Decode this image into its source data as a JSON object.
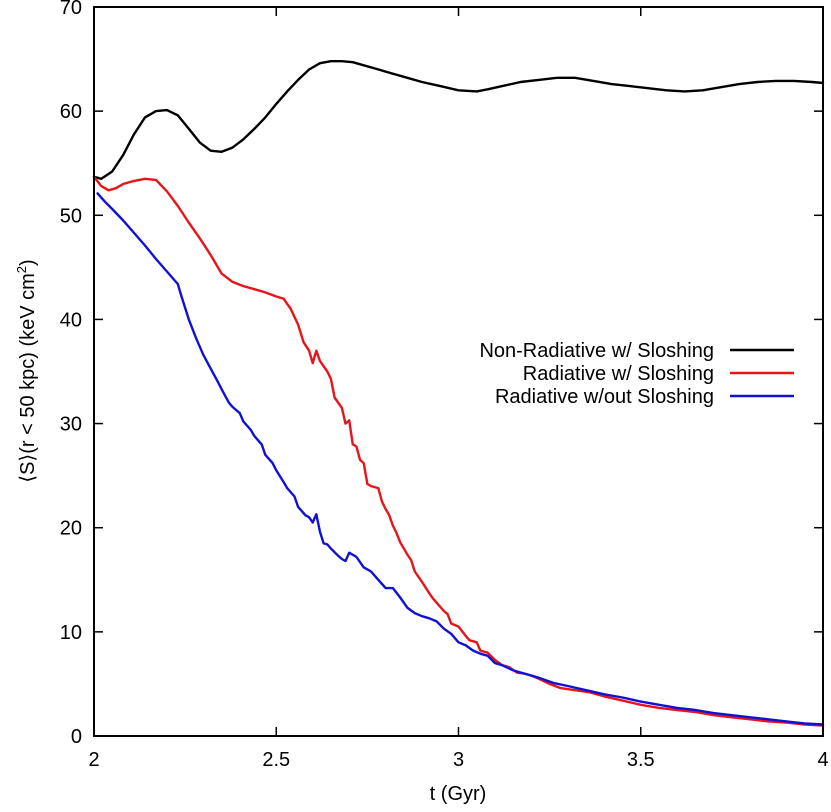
{
  "chart_data": {
    "type": "line",
    "xlabel": "t (Gyr)",
    "ylabel_main": "⟨S⟩(r < 50 kpc) (keV cm",
    "ylabel_sup": "2",
    "ylabel_close": ")",
    "xlim": [
      2,
      4
    ],
    "ylim": [
      0,
      70
    ],
    "xticks": [
      2,
      2.5,
      3,
      3.5,
      4
    ],
    "xtick_labels": [
      "2",
      "2.5",
      "3",
      "3.5",
      "4"
    ],
    "yticks": [
      0,
      10,
      20,
      30,
      40,
      50,
      60,
      70
    ],
    "ytick_labels": [
      "0",
      "10",
      "20",
      "30",
      "40",
      "50",
      "60",
      "70"
    ],
    "grid": false,
    "legend_position": "right-middle",
    "series": [
      {
        "name": "Non-Radiative w/ Sloshing",
        "color": "#000000",
        "x": [
          2.0,
          2.02,
          2.05,
          2.08,
          2.11,
          2.14,
          2.17,
          2.2,
          2.23,
          2.26,
          2.29,
          2.32,
          2.35,
          2.38,
          2.41,
          2.44,
          2.47,
          2.5,
          2.53,
          2.56,
          2.59,
          2.62,
          2.65,
          2.68,
          2.71,
          2.74,
          2.77,
          2.8,
          2.85,
          2.9,
          2.95,
          3.0,
          3.05,
          3.08,
          3.12,
          3.17,
          3.22,
          3.27,
          3.32,
          3.37,
          3.42,
          3.47,
          3.52,
          3.57,
          3.62,
          3.67,
          3.72,
          3.77,
          3.82,
          3.87,
          3.92,
          3.97,
          4.0
        ],
        "y": [
          53.7,
          53.5,
          54.2,
          55.8,
          57.8,
          59.4,
          60.0,
          60.1,
          59.6,
          58.3,
          57.0,
          56.2,
          56.1,
          56.5,
          57.3,
          58.3,
          59.4,
          60.7,
          61.9,
          63.0,
          64.0,
          64.6,
          64.8,
          64.8,
          64.7,
          64.4,
          64.1,
          63.8,
          63.3,
          62.8,
          62.4,
          62.0,
          61.9,
          62.1,
          62.4,
          62.8,
          63.0,
          63.2,
          63.2,
          62.9,
          62.6,
          62.4,
          62.2,
          62.0,
          61.9,
          62.0,
          62.3,
          62.6,
          62.8,
          62.9,
          62.9,
          62.8,
          62.7
        ]
      },
      {
        "name": "Radiative w/ Sloshing",
        "color": "#e8131b",
        "x": [
          2.0,
          2.02,
          2.04,
          2.06,
          2.08,
          2.11,
          2.14,
          2.17,
          2.2,
          2.23,
          2.26,
          2.29,
          2.32,
          2.35,
          2.38,
          2.41,
          2.44,
          2.47,
          2.5,
          2.52,
          2.54,
          2.56,
          2.575,
          2.59,
          2.6,
          2.61,
          2.62,
          2.64,
          2.65,
          2.66,
          2.68,
          2.69,
          2.7,
          2.71,
          2.72,
          2.73,
          2.74,
          2.75,
          2.76,
          2.78,
          2.79,
          2.8,
          2.81,
          2.82,
          2.83,
          2.84,
          2.86,
          2.87,
          2.88,
          2.9,
          2.92,
          2.93,
          2.94,
          2.96,
          2.97,
          2.98,
          3.0,
          3.02,
          3.03,
          3.05,
          3.06,
          3.08,
          3.1,
          3.12,
          3.14,
          3.16,
          3.18,
          3.2,
          3.22,
          3.25,
          3.28,
          3.32,
          3.36,
          3.4,
          3.45,
          3.5,
          3.55,
          3.6,
          3.65,
          3.7,
          3.75,
          3.8,
          3.85,
          3.9,
          3.95,
          4.0
        ],
        "y": [
          53.7,
          52.8,
          52.4,
          52.6,
          53.0,
          53.3,
          53.5,
          53.4,
          52.3,
          50.9,
          49.3,
          47.8,
          46.2,
          44.4,
          43.6,
          43.2,
          42.9,
          42.6,
          42.2,
          42.0,
          41.0,
          39.5,
          37.8,
          37.0,
          35.8,
          37.0,
          36.0,
          35.0,
          34.3,
          32.5,
          31.5,
          30.0,
          30.3,
          28.0,
          27.8,
          26.5,
          26.2,
          24.2,
          24.0,
          23.8,
          22.5,
          21.8,
          21.2,
          20.2,
          19.5,
          18.6,
          17.4,
          16.9,
          15.8,
          14.8,
          13.7,
          13.2,
          12.8,
          12.0,
          11.7,
          10.8,
          10.5,
          9.6,
          9.2,
          9.0,
          8.2,
          8.0,
          7.3,
          6.8,
          6.6,
          6.1,
          6.0,
          5.8,
          5.5,
          5.0,
          4.6,
          4.4,
          4.2,
          3.8,
          3.4,
          3.0,
          2.7,
          2.5,
          2.3,
          2.0,
          1.8,
          1.6,
          1.4,
          1.3,
          1.1,
          1.0
        ]
      },
      {
        "name": "Radiative w/out Sloshing",
        "color": "#1111d6",
        "x": [
          2.01,
          2.03,
          2.05,
          2.08,
          2.11,
          2.14,
          2.17,
          2.2,
          2.23,
          2.24,
          2.26,
          2.28,
          2.3,
          2.32,
          2.34,
          2.35,
          2.37,
          2.38,
          2.4,
          2.41,
          2.43,
          2.44,
          2.46,
          2.47,
          2.49,
          2.5,
          2.52,
          2.53,
          2.55,
          2.56,
          2.58,
          2.59,
          2.6,
          2.61,
          2.62,
          2.63,
          2.64,
          2.65,
          2.67,
          2.68,
          2.69,
          2.7,
          2.72,
          2.74,
          2.76,
          2.78,
          2.8,
          2.82,
          2.84,
          2.86,
          2.88,
          2.9,
          2.92,
          2.94,
          2.96,
          2.98,
          3.0,
          3.02,
          3.04,
          3.06,
          3.08,
          3.1,
          3.12,
          3.15,
          3.18,
          3.22,
          3.26,
          3.3,
          3.35,
          3.4,
          3.45,
          3.5,
          3.55,
          3.6,
          3.65,
          3.7,
          3.75,
          3.8,
          3.85,
          3.9,
          3.95,
          4.0
        ],
        "y": [
          52.1,
          51.3,
          50.6,
          49.5,
          48.3,
          47.1,
          45.8,
          44.6,
          43.4,
          42.2,
          40.0,
          38.2,
          36.6,
          35.3,
          34.0,
          33.3,
          32.0,
          31.6,
          31.0,
          30.2,
          29.4,
          28.8,
          28.0,
          27.0,
          26.2,
          25.5,
          24.4,
          23.8,
          23.0,
          22.0,
          21.2,
          21.0,
          20.5,
          21.3,
          19.6,
          18.5,
          18.4,
          18.0,
          17.3,
          17.0,
          16.8,
          17.6,
          17.2,
          16.2,
          15.8,
          15.0,
          14.2,
          14.2,
          13.3,
          12.3,
          11.8,
          11.5,
          11.3,
          11.0,
          10.3,
          9.8,
          9.0,
          8.7,
          8.2,
          7.9,
          7.7,
          7.0,
          6.8,
          6.3,
          6.0,
          5.6,
          5.1,
          4.8,
          4.4,
          4.0,
          3.7,
          3.3,
          3.0,
          2.7,
          2.5,
          2.2,
          2.0,
          1.8,
          1.6,
          1.4,
          1.2,
          1.1
        ]
      }
    ]
  }
}
